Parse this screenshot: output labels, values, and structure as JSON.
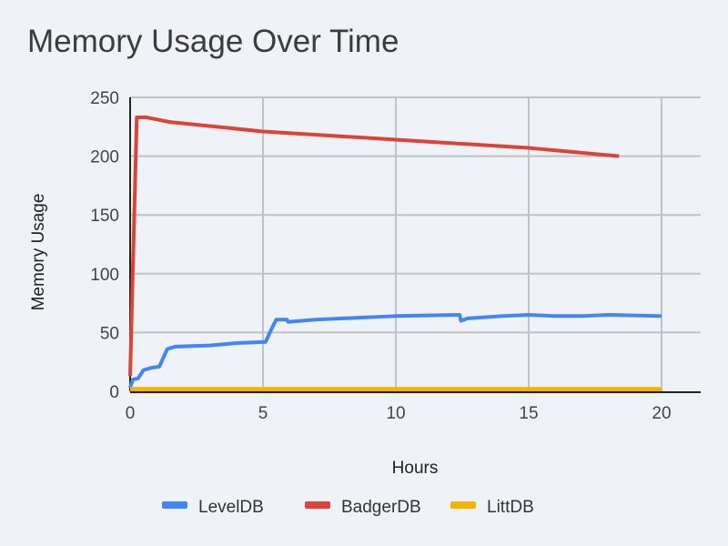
{
  "chart_data": {
    "type": "line",
    "title": "Memory Usage Over Time",
    "xlabel": "Hours",
    "ylabel": "Memory Usage",
    "xlim": [
      0,
      21.5
    ],
    "ylim": [
      0,
      250
    ],
    "xticks": [
      0,
      5,
      10,
      15,
      20
    ],
    "yticks": [
      0,
      50,
      100,
      150,
      200,
      250
    ],
    "grid": true,
    "legend": "bottom",
    "series": [
      {
        "name": "LevelDB",
        "color": "#4285f4",
        "points": [
          [
            0,
            3
          ],
          [
            0.1,
            10
          ],
          [
            0.3,
            11
          ],
          [
            0.5,
            18
          ],
          [
            0.8,
            20
          ],
          [
            1.1,
            21
          ],
          [
            1.4,
            36
          ],
          [
            1.7,
            38
          ],
          [
            3,
            39
          ],
          [
            4,
            41
          ],
          [
            5.1,
            42
          ],
          [
            5.3,
            52
          ],
          [
            5.5,
            61
          ],
          [
            5.9,
            61
          ],
          [
            5.95,
            59
          ],
          [
            7,
            61
          ],
          [
            10,
            64
          ],
          [
            12.4,
            65
          ],
          [
            12.45,
            60
          ],
          [
            12.7,
            62
          ],
          [
            14,
            64
          ],
          [
            15,
            65
          ],
          [
            16,
            64
          ],
          [
            17,
            64
          ],
          [
            18,
            65
          ],
          [
            20,
            64
          ]
        ]
      },
      {
        "name": "BadgerDB",
        "color": "#db4437",
        "points": [
          [
            0,
            13
          ],
          [
            0.25,
            233
          ],
          [
            0.6,
            233
          ],
          [
            1.5,
            229
          ],
          [
            5,
            221
          ],
          [
            10,
            214
          ],
          [
            15,
            207
          ],
          [
            18.4,
            200
          ]
        ]
      },
      {
        "name": "LittDB",
        "color": "#f4b400",
        "points": [
          [
            0,
            1
          ],
          [
            20,
            1
          ]
        ]
      }
    ]
  }
}
